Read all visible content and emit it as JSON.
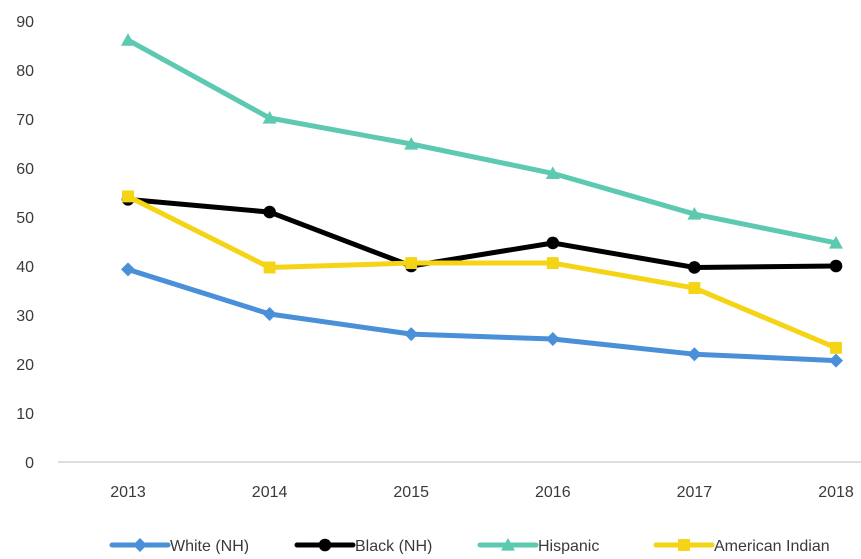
{
  "chart_data": {
    "type": "line",
    "title": "",
    "xlabel": "",
    "ylabel": "",
    "categories": [
      "2013",
      "2014",
      "2015",
      "2016",
      "2017",
      "2018"
    ],
    "ylim": [
      0,
      90
    ],
    "yticks": [
      0,
      10,
      20,
      30,
      40,
      50,
      60,
      70,
      80,
      90
    ],
    "grid": false,
    "legend_position": "bottom",
    "series": [
      {
        "name": "White (NH)",
        "color": "#4a90d9",
        "marker": "diamond",
        "values": [
          39.3,
          30.2,
          26.1,
          25.1,
          22.0,
          20.7
        ]
      },
      {
        "name": "Black (NH)",
        "color": "#000000",
        "marker": "circle",
        "values": [
          53.6,
          51.0,
          40.0,
          44.7,
          39.7,
          40.0
        ]
      },
      {
        "name": "Hispanic",
        "color": "#5cc9b0",
        "marker": "triangle",
        "values": [
          86.1,
          70.2,
          64.9,
          58.9,
          50.6,
          44.7
        ]
      },
      {
        "name": "American Indian",
        "color": "#f5d315",
        "marker": "square",
        "values": [
          54.2,
          39.7,
          40.6,
          40.6,
          35.5,
          23.3
        ]
      }
    ]
  }
}
